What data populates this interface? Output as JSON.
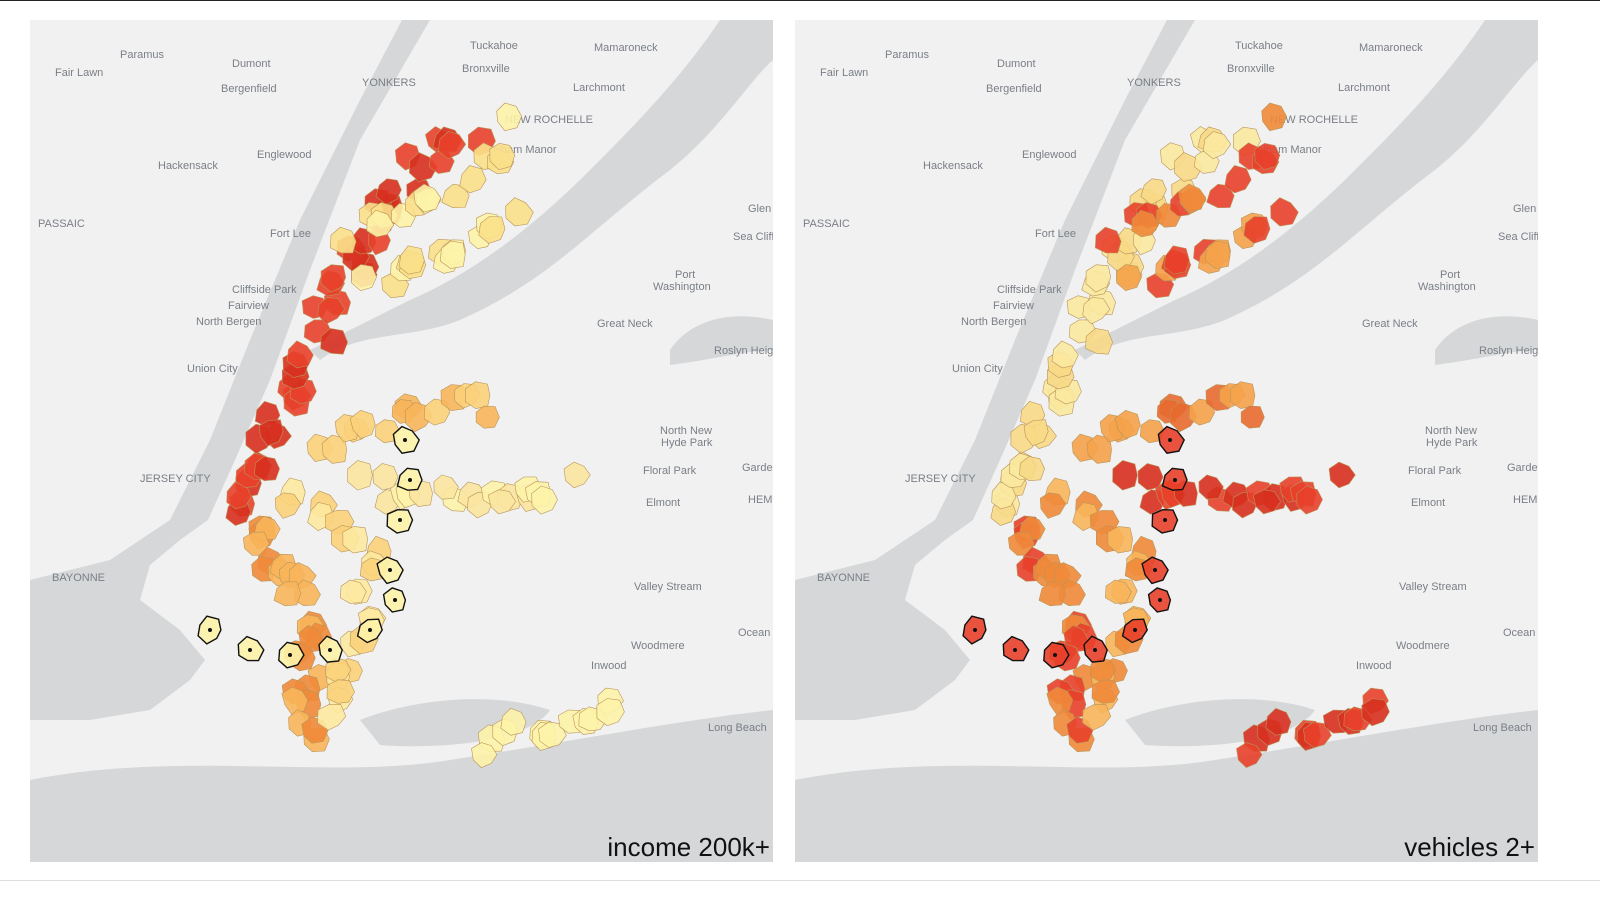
{
  "maps": [
    {
      "caption": "income 200k+"
    },
    {
      "caption": "vehicles 2+"
    }
  ],
  "place_labels": [
    "Paramus",
    "Fair Lawn",
    "Dumont",
    "Bergenfield",
    "Tuckahoe",
    "Bronxville",
    "Mamaroneck",
    "YONKERS",
    "Larchmont",
    "NEW ROCHELLE",
    "Pelham Manor",
    "Hackensack",
    "Englewood",
    "PASSAIC",
    "Fort Lee",
    "Glen",
    "Sea Cliff",
    "Port",
    "Washington",
    "Cliffside Park",
    "Fairview",
    "North Bergen",
    "Great Neck",
    "Roslyn Heig",
    "Union City",
    "North New",
    "Hyde Park",
    "Floral Park",
    "Garde",
    "JERSEY CITY",
    "Elmont",
    "HEM",
    "BAYONNE",
    "Valley Stream",
    "Ocean",
    "Woodmere",
    "Inwood",
    "Long Beach"
  ]
}
